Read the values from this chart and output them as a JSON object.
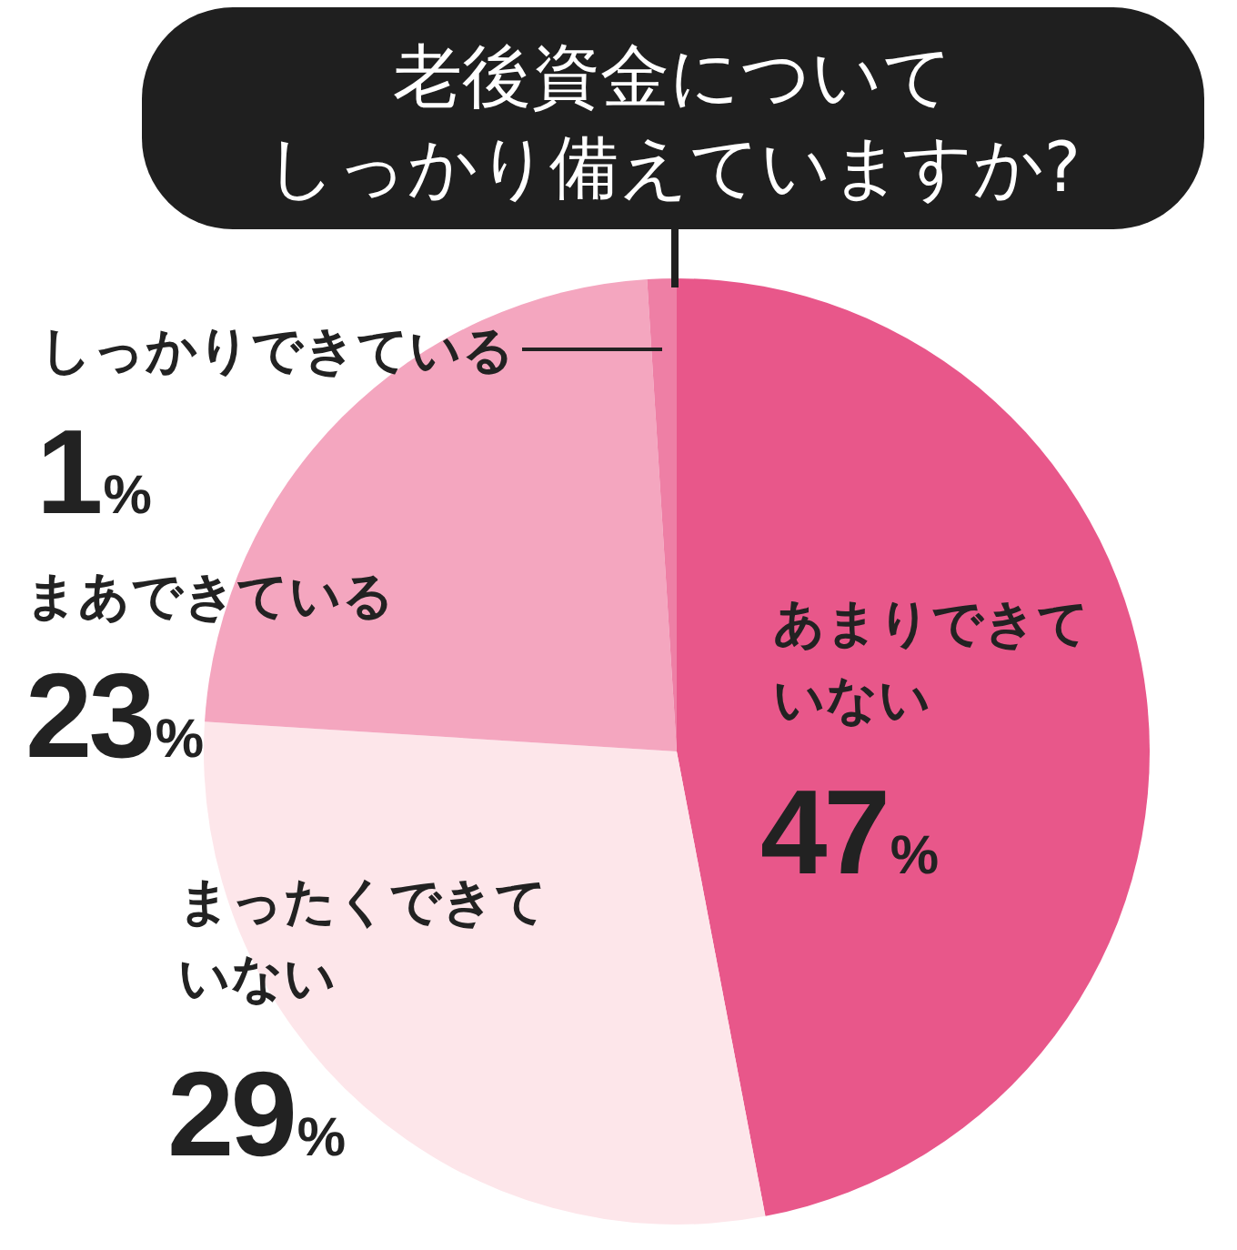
{
  "chart_data": {
    "type": "pie",
    "title": "老後資金についてしっかり備えていますか?",
    "categories": [
      "あまりできていない",
      "まったくできていない",
      "まあできている",
      "しっかりできている"
    ],
    "values": [
      47,
      29,
      23,
      1
    ],
    "colors": [
      "#e8578a",
      "#fde6ea",
      "#f4a6bf",
      "#ee7fa5"
    ],
    "value_labels": [
      "47%",
      "29%",
      "23%",
      "1%"
    ]
  }
}
